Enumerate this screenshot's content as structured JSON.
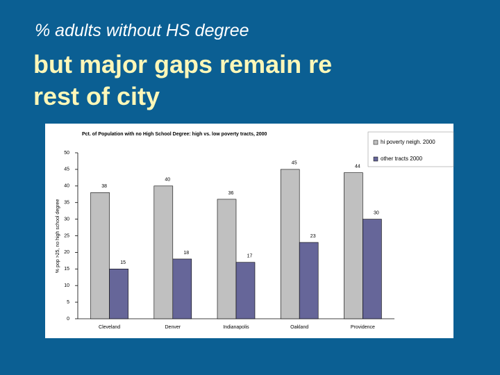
{
  "slide": {
    "kicker": "% adults without HS degree",
    "heading": "but major gaps remain re rest of city"
  },
  "chart_data": {
    "type": "bar",
    "title": "Pct. of Population with no High School Degree: high vs. low poverty tracts, 2000",
    "y_label": "% pop >25, no high school degree",
    "categories": [
      "Cleveland",
      "Denver",
      "Indianapolis",
      "Oakland",
      "Providence"
    ],
    "series": [
      {
        "name": "hi poverty neigh. 2000",
        "color": "#c0c0c0",
        "values": [
          38,
          40,
          36,
          45,
          44
        ]
      },
      {
        "name": "other tracts 2000",
        "color": "#666699",
        "values": [
          15,
          18,
          17,
          23,
          30
        ]
      }
    ],
    "ylim": [
      0,
      50
    ],
    "yticks": [
      0,
      5,
      10,
      15,
      20,
      25,
      30,
      35,
      40,
      45,
      50
    ],
    "legend": "upper right"
  }
}
